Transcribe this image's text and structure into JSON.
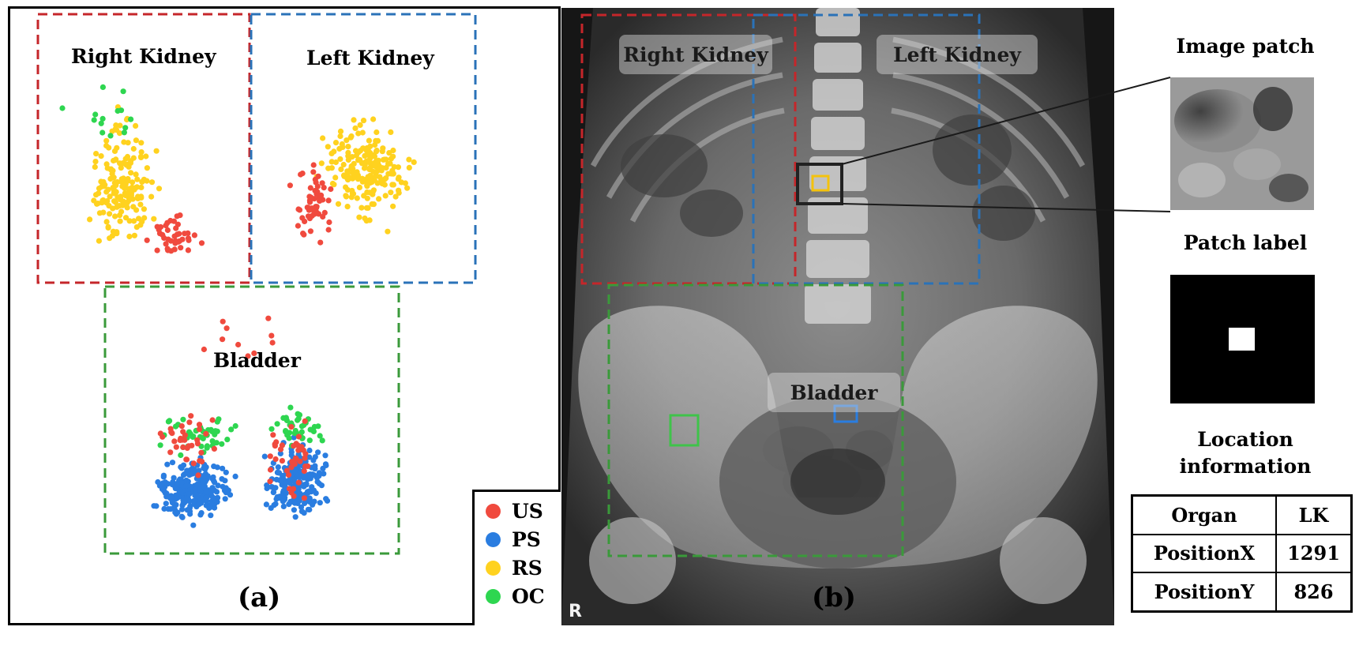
{
  "panel_a": {
    "regions": {
      "right_kidney": "Right Kidney",
      "left_kidney": "Left Kidney",
      "bladder": "Bladder"
    },
    "legend": [
      {
        "label": "US",
        "color": "#f04a3e"
      },
      {
        "label": "PS",
        "color": "#2a7de0"
      },
      {
        "label": "RS",
        "color": "#ffd21f"
      },
      {
        "label": "OC",
        "color": "#2ed650"
      }
    ],
    "box_colors": {
      "right_kidney": "#c5262a",
      "left_kidney": "#2a72b8",
      "bladder": "#3a9a3a"
    }
  },
  "panel_b": {
    "regions": {
      "right_kidney": "Right Kidney",
      "left_kidney": "Left Kidney",
      "bladder": "Bladder"
    },
    "side_marker": "R",
    "patch_box_colors": {
      "yellow": "#f4c20d",
      "green": "#3fc34a",
      "blue": "#2a7de0"
    }
  },
  "right_panel": {
    "image_patch_title": "Image patch",
    "patch_label_title": "Patch label",
    "location_title_line1": "Location",
    "location_title_line2": "information",
    "table": [
      {
        "key": "Organ",
        "value": "LK"
      },
      {
        "key": "PositionX",
        "value": "1291"
      },
      {
        "key": "PositionY",
        "value": "826"
      }
    ]
  },
  "captions": {
    "a": "(a)",
    "b": "(b)"
  }
}
